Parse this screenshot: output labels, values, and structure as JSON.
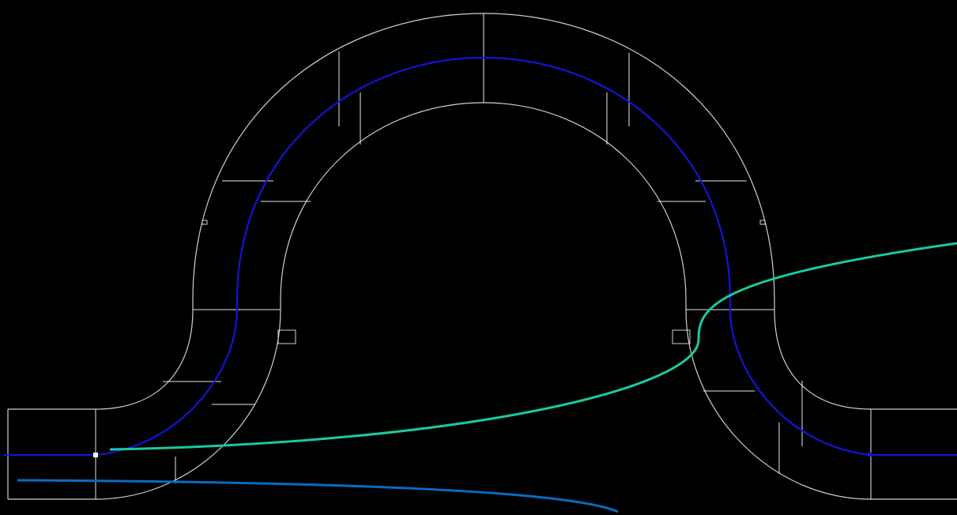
{
  "colors": {
    "background": "#000000",
    "tunnel_outline": "#cfcfcf",
    "center_path": "#1414d8",
    "teal_curve": "#1bc9a0",
    "blue_curve": "#0a6bc2",
    "grip_square": "#ffffff"
  },
  "icons": {
    "grip": "small-square-grip",
    "anchor": "square-marker"
  }
}
